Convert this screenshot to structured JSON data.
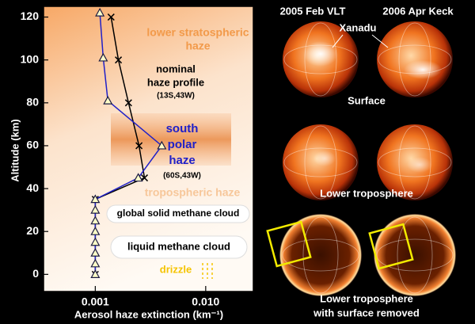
{
  "chart_data": {
    "type": "line",
    "xscale": "log",
    "xlabel": "Aerosol haze extinction (km⁻¹)",
    "ylabel": "Altitude (km)",
    "xlim": [
      0.00034,
      0.027
    ],
    "ylim": [
      -8,
      125
    ],
    "xticks": [
      {
        "value": 0.001,
        "label": "0.001"
      },
      {
        "value": 0.01,
        "label": "0.010"
      }
    ],
    "yticks": [
      0,
      20,
      40,
      60,
      80,
      100,
      120
    ],
    "series": [
      {
        "color": "#000000",
        "marker": "x",
        "x": [
          0.001,
          0.001,
          0.00279,
          0.00249,
          0.002,
          0.00162,
          0.00139
        ],
        "y": [
          0,
          35,
          45,
          60,
          80,
          100,
          120
        ]
      },
      {
        "color": "#2020c8",
        "marker": "triangle",
        "x": [
          0.001,
          0.001,
          0.001,
          0.001,
          0.001,
          0.001,
          0.001,
          0.001,
          0.00245,
          0.004,
          0.0013,
          0.00118,
          0.0011
        ],
        "y": [
          0,
          5,
          10,
          15,
          20,
          25,
          30,
          35,
          45,
          60,
          81,
          101,
          122
        ]
      }
    ],
    "annotations": {
      "stratospheric": [
        "lower stratospheric",
        "haze"
      ],
      "nominal": [
        "nominal",
        "haze profile",
        "(13S,43W)"
      ],
      "polar": [
        "south",
        "polar",
        "haze",
        "(60S,43W)"
      ],
      "tropospheric": "tropospheric haze",
      "solid_cloud": "global solid methane cloud",
      "liquid_cloud": "liquid methane cloud",
      "drizzle": "drizzle"
    }
  },
  "panels": {
    "columns": [
      "2005 Feb VLT",
      "2006 Apr Keck"
    ],
    "feature": "Xanadu",
    "rows": [
      [
        "Surface"
      ],
      [
        "Lower troposphere"
      ],
      [
        "Lower troposphere",
        "with surface removed"
      ]
    ]
  }
}
